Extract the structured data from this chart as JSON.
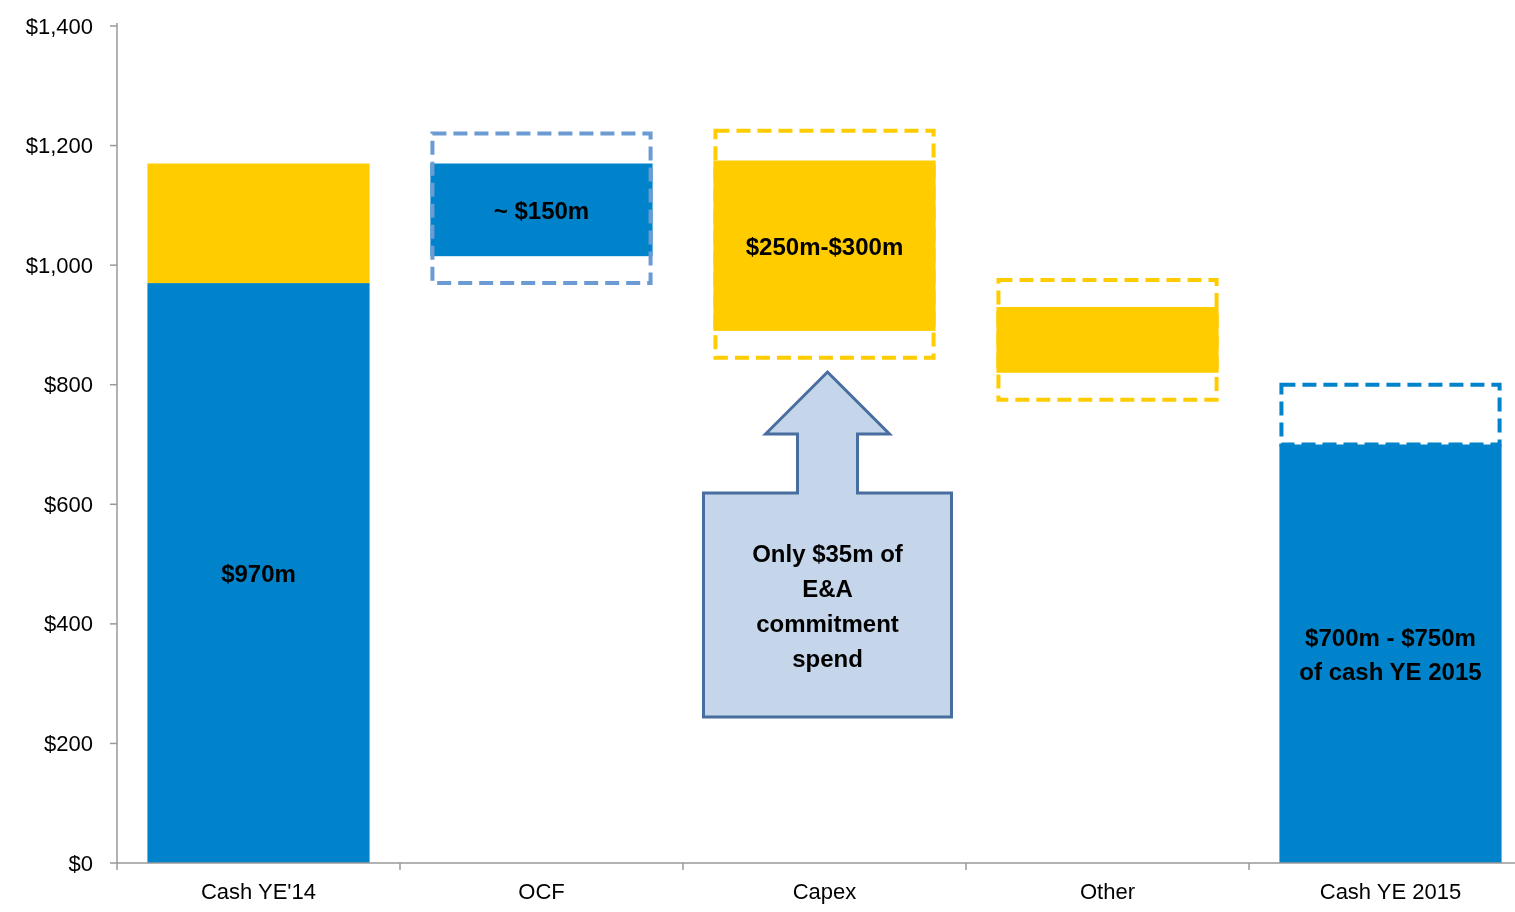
{
  "chart_data": {
    "type": "bar",
    "categories": [
      "Cash YE'14",
      "OCF",
      "Capex",
      "Other",
      "Cash YE 2015"
    ],
    "series": [
      {
        "colors": [
          "#0083ca",
          "#0083ca",
          null,
          null,
          "#0083ca"
        ],
        "values": [
          970,
          155,
          null,
          null,
          700
        ],
        "base": [
          0,
          1015,
          null,
          null,
          0
        ]
      },
      {
        "colors": [
          "#ffcc00",
          null,
          "#ffcc00",
          "#ffcc00",
          null
        ],
        "values": [
          200,
          null,
          285,
          110,
          null
        ],
        "base": [
          970,
          null,
          890,
          820,
          null
        ]
      },
      {
        "line_style": "dashed",
        "colors": [
          null,
          "#6b9bd2",
          "#ffcc00",
          "#ffcc00",
          "#0083ca"
        ],
        "values": [
          null,
          250,
          380,
          200,
          100
        ],
        "base": [
          null,
          970,
          845,
          775,
          700
        ]
      }
    ],
    "ylim": [
      0,
      1400
    ],
    "yticks": [
      {
        "value": 0,
        "label": "$0"
      },
      {
        "value": 200,
        "label": "$200"
      },
      {
        "value": 400,
        "label": "$400"
      },
      {
        "value": 600,
        "label": "$600"
      },
      {
        "value": 800,
        "label": "$800"
      },
      {
        "value": 1000,
        "label": "$1,000"
      },
      {
        "value": 1200,
        "label": "$1,200"
      },
      {
        "value": 1400,
        "label": "$1,400"
      }
    ],
    "annotations": [
      "$970m",
      "~ $150m",
      "$250m-$300m",
      "$700m - $750m of cash YE 2015",
      "Only $35m of E&A commitment spend"
    ]
  }
}
